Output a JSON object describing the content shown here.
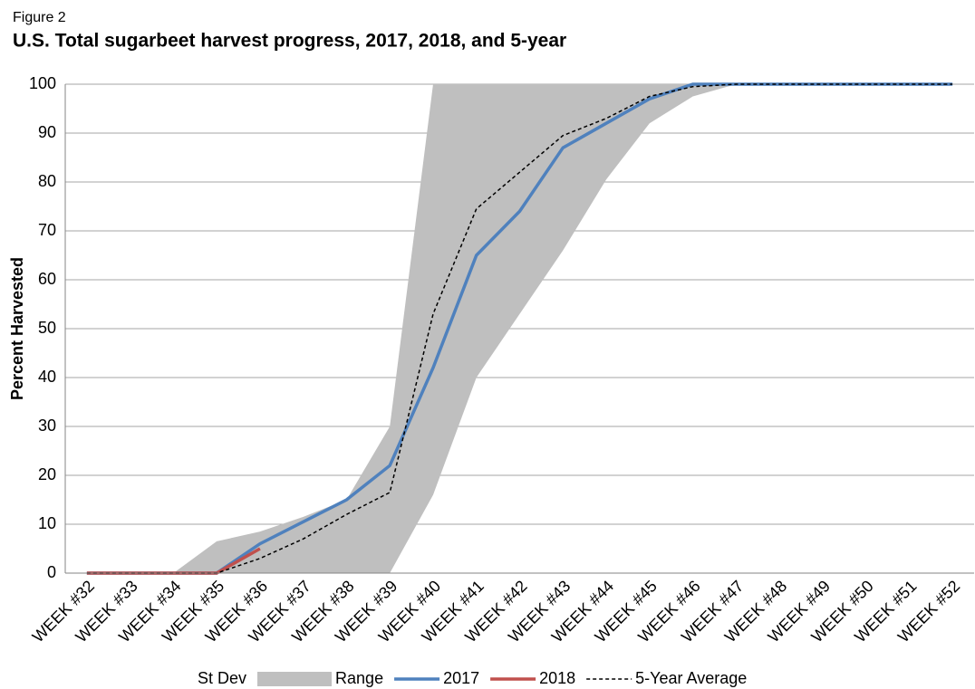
{
  "chart_data": {
    "type": "line",
    "figure_label": "Figure 2",
    "title": "U.S. Total sugarbeet harvest progress, 2017, 2018, and 5-year",
    "y_label": "Percent Harvested",
    "categories": [
      "WEEK #32",
      "WEEK #33",
      "WEEK #34",
      "WEEK #35",
      "WEEK #36",
      "WEEK #37",
      "WEEK #38",
      "WEEK #39",
      "WEEK #40",
      "WEEK #41",
      "WEEK #42",
      "WEEK #43",
      "WEEK #44",
      "WEEK #45",
      "WEEK #46",
      "WEEK #47",
      "WEEK #48",
      "WEEK #49",
      "WEEK #50",
      "WEEK #51",
      "WEEK #52"
    ],
    "series": [
      {
        "name": "St Dev",
        "color": "none",
        "stacked_area": true,
        "values": [
          0,
          0,
          0,
          0,
          0,
          0,
          0,
          0,
          16,
          40,
          53,
          66,
          80.5,
          92,
          97.5,
          100,
          100,
          100,
          100,
          100,
          100
        ]
      },
      {
        "name": "Range",
        "color": "#bfbfbf",
        "stacked_area": true,
        "values": [
          0,
          0,
          0,
          6.5,
          8.5,
          11.5,
          15,
          30,
          84,
          60,
          47,
          34,
          19.5,
          8,
          2.5,
          0,
          0,
          0,
          0,
          0,
          0
        ]
      },
      {
        "name": "2017",
        "color": "#4f81bd",
        "values": [
          0,
          0,
          0,
          0,
          6,
          10.5,
          15,
          22,
          42,
          65,
          74,
          87,
          92,
          97,
          100,
          100,
          100,
          100,
          100,
          100,
          100
        ]
      },
      {
        "name": "2018",
        "color": "#c0504d",
        "values": [
          0,
          0,
          0,
          0,
          5,
          null,
          null,
          null,
          null,
          null,
          null,
          null,
          null,
          null,
          null,
          null,
          null,
          null,
          null,
          null,
          null
        ]
      },
      {
        "name": "5-Year Average",
        "color": "#000000",
        "dashed": true,
        "values": [
          0,
          0,
          0,
          0,
          3,
          7,
          12,
          16.5,
          53,
          74.5,
          82,
          89.5,
          93,
          97.5,
          99.5,
          100,
          100,
          100,
          100,
          100,
          100
        ]
      }
    ],
    "ylim": [
      0,
      100
    ],
    "yticks": [
      0,
      10,
      20,
      30,
      40,
      50,
      60,
      70,
      80,
      90,
      100
    ],
    "grid": true,
    "legend": "bottom"
  }
}
